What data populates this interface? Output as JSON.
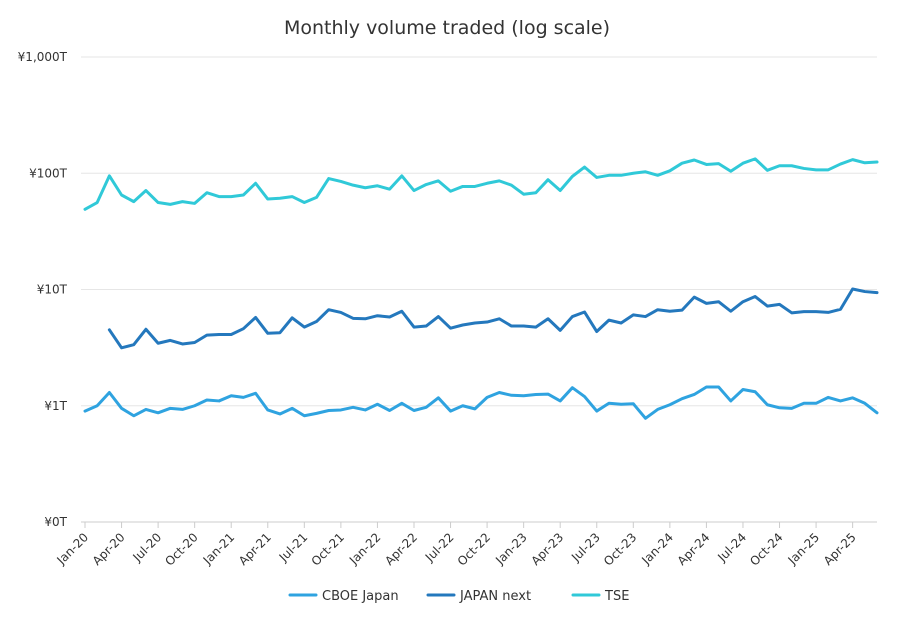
{
  "chart_data": {
    "type": "line",
    "title": "Monthly volume traded (log scale)",
    "xlabel": "",
    "ylabel": "",
    "y_scale": "log",
    "ylim": [
      0.1,
      1000
    ],
    "y_ticks": [
      {
        "value": 0.1,
        "label": "¥0T"
      },
      {
        "value": 1,
        "label": "¥1T"
      },
      {
        "value": 10,
        "label": "¥10T"
      },
      {
        "value": 100,
        "label": "¥100T"
      },
      {
        "value": 1000,
        "label": "¥1,000T"
      }
    ],
    "x_tick_labels": [
      "Jan-20",
      "Apr-20",
      "Jul-20",
      "Oct-20",
      "Jan-21",
      "Apr-21",
      "Jul-21",
      "Oct-21",
      "Jan-22",
      "Apr-22",
      "Jul-22",
      "Oct-22",
      "Jan-23",
      "Apr-23",
      "Jul-23",
      "Oct-23",
      "Jan-24",
      "Apr-24",
      "Jul-24",
      "Oct-24",
      "Jan-25",
      "Apr-25"
    ],
    "x_start": "Jan-20",
    "grid": "horizontal",
    "legend": "bottom",
    "colors": {
      "CBOE Japan": "#2fa3e0",
      "JAPAN next": "#2478bd",
      "TSE": "#30c9d8"
    },
    "series": [
      {
        "name": "CBOE Japan",
        "values": [
          0.9,
          1.0,
          1.3,
          0.95,
          0.82,
          0.93,
          0.87,
          0.95,
          0.93,
          1.0,
          1.12,
          1.1,
          1.22,
          1.18,
          1.28,
          0.92,
          0.85,
          0.95,
          0.82,
          0.86,
          0.91,
          0.92,
          0.97,
          0.92,
          1.03,
          0.91,
          1.05,
          0.91,
          0.97,
          1.17,
          0.9,
          1.0,
          0.94,
          1.18,
          1.3,
          1.23,
          1.22,
          1.25,
          1.26,
          1.1,
          1.43,
          1.2,
          0.9,
          1.05,
          1.03,
          1.04,
          0.78,
          0.93,
          1.02,
          1.15,
          1.25,
          1.45,
          1.45,
          1.1,
          1.38,
          1.32,
          1.02,
          0.96,
          0.95,
          1.05,
          1.05,
          1.18,
          1.1,
          1.17,
          1.05,
          0.87
        ]
      },
      {
        "name": "JAPAN next",
        "values": [
          null,
          null,
          4.5,
          3.15,
          3.35,
          4.55,
          3.45,
          3.65,
          3.4,
          3.5,
          4.05,
          4.1,
          4.1,
          4.6,
          5.75,
          4.2,
          4.25,
          5.7,
          4.75,
          5.3,
          6.7,
          6.35,
          5.65,
          5.6,
          5.95,
          5.8,
          6.5,
          4.75,
          4.85,
          5.85,
          4.65,
          4.95,
          5.15,
          5.25,
          5.6,
          4.85,
          4.85,
          4.75,
          5.6,
          4.45,
          5.85,
          6.4,
          4.35,
          5.45,
          5.15,
          6.05,
          5.85,
          6.7,
          6.5,
          6.65,
          8.6,
          7.6,
          7.85,
          6.5,
          7.85,
          8.7,
          7.2,
          7.45,
          6.3,
          6.45,
          6.45,
          6.35,
          6.75,
          10.1,
          9.6,
          9.4
        ]
      },
      {
        "name": "TSE",
        "values": [
          49,
          56,
          95,
          65,
          57,
          71,
          56,
          54,
          57,
          55,
          68,
          63,
          63,
          65,
          82,
          60,
          61,
          63,
          56,
          62,
          90,
          85,
          79,
          75,
          78,
          73,
          95,
          71,
          80,
          86,
          70,
          77,
          77,
          82,
          86,
          79,
          66,
          68,
          88,
          71,
          94,
          113,
          92,
          96,
          96,
          100,
          103,
          96,
          105,
          122,
          130,
          119,
          121,
          104,
          122,
          133,
          106,
          116,
          116,
          110,
          107,
          107,
          120,
          131,
          123,
          125
        ]
      }
    ]
  }
}
